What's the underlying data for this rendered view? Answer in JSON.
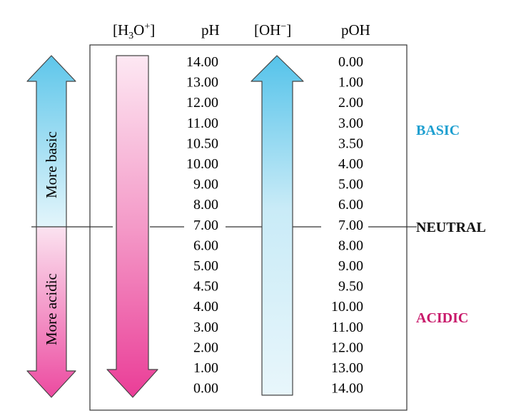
{
  "headers": {
    "h3o_main": "[H",
    "h3o_sub": "3",
    "h3o_mid": "O",
    "h3o_sup": "+",
    "h3o_end": "]",
    "ph": "pH",
    "oh_main": "[OH",
    "oh_sup": "−",
    "oh_end": "]",
    "poh": "pOH"
  },
  "left_arrow": {
    "top_label": "More basic",
    "bottom_label": "More acidic"
  },
  "ph_values": [
    "14.00",
    "13.00",
    "12.00",
    "11.00",
    "10.50",
    "10.00",
    "9.00",
    "8.00",
    "7.00",
    "6.00",
    "5.00",
    "4.50",
    "4.00",
    "3.00",
    "2.00",
    "1.00",
    "0.00"
  ],
  "poh_values": [
    "0.00",
    "1.00",
    "2.00",
    "3.00",
    "3.50",
    "4.00",
    "5.00",
    "6.00",
    "7.00",
    "8.00",
    "9.00",
    "9.50",
    "10.00",
    "11.00",
    "12.00",
    "13.00",
    "14.00"
  ],
  "zones": {
    "basic": "BASIC",
    "neutral": "NEUTRAL",
    "acidic": "ACIDIC"
  },
  "colors": {
    "basic_blue": "#1e9fd0",
    "acidic_magenta": "#c8186a",
    "cyan_arrow": "#5ec6ea",
    "pink_arrow": "#ec4aa0"
  }
}
